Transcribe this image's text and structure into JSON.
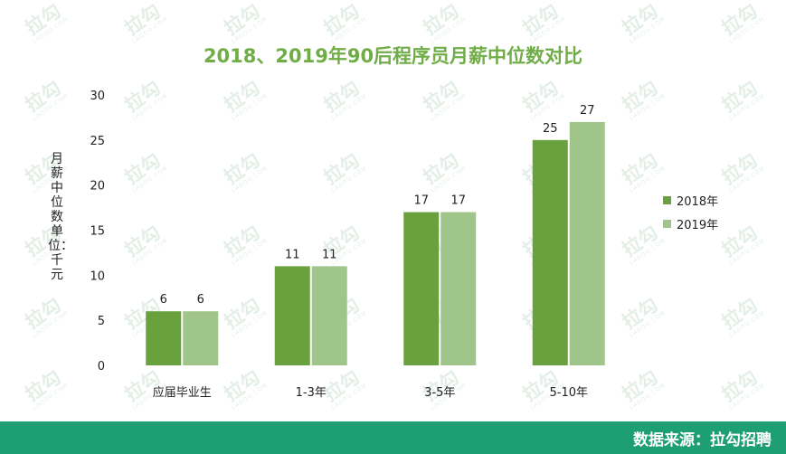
{
  "watermark": {
    "main": "拉勾",
    "sub": "LAGOU.COM"
  },
  "footer": {
    "source": "数据来源：拉勾招聘"
  },
  "colors": {
    "series_2018": "#6aa13f",
    "series_2019": "#9fc58b",
    "title": "#70ad47",
    "footer_bg": "#1e9e73"
  },
  "chart_data": {
    "type": "bar",
    "title": "2018、2019年90后程序员月薪中位数对比",
    "ylabel": "月薪中位数 单位：千元",
    "xlabel": "",
    "categories": [
      "应届毕业生",
      "1-3年",
      "3-5年",
      "5-10年"
    ],
    "series": [
      {
        "name": "2018年",
        "values": [
          6,
          11,
          17,
          25
        ]
      },
      {
        "name": "2019年",
        "values": [
          6,
          11,
          17,
          27
        ]
      }
    ],
    "ylim": [
      0,
      30
    ],
    "yticks": [
      "0",
      "5",
      "10",
      "15",
      "20",
      "25",
      "30"
    ],
    "legend": "right",
    "grid": false
  }
}
